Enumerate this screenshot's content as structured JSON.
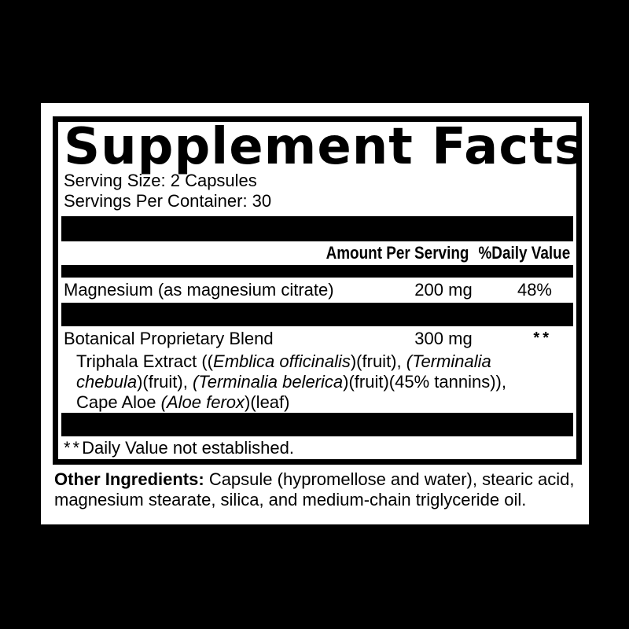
{
  "panel": {
    "title": "Supplement Facts",
    "serving_size": "Serving Size: 2 Capsules",
    "servings_per_container": "Servings Per Container: 30",
    "columns": {
      "amount": "Amount Per Serving",
      "daily_value": "%Daily Value"
    },
    "rows": [
      {
        "name": "Magnesium (as magnesium citrate)",
        "amount": "200 mg",
        "daily_value": "48%"
      },
      {
        "name": "Botanical Proprietary Blend",
        "amount": "300 mg",
        "daily_value": "**"
      }
    ],
    "blend_lines": [
      [
        {
          "t": "Triphala Extract ((",
          "i": false
        },
        {
          "t": "Emblica officinalis",
          "i": true
        },
        {
          "t": ")(fruit), ",
          "i": false
        },
        {
          "t": "(Terminalia",
          "i": true
        }
      ],
      [
        {
          "t": "chebula",
          "i": true
        },
        {
          "t": ")(fruit), ",
          "i": false
        },
        {
          "t": "(Terminalia belerica",
          "i": true
        },
        {
          "t": ")(fruit)(45% tannins)),",
          "i": false
        }
      ],
      [
        {
          "t": "Cape Aloe ",
          "i": false
        },
        {
          "t": "(Aloe ferox",
          "i": true
        },
        {
          "t": ")(leaf)",
          "i": false
        }
      ]
    ],
    "footnote_marker": "**",
    "footnote_text": "Daily Value not established.",
    "other_ingredients": {
      "label": "Other Ingredients:",
      "text": "Capsule (hypromellose and water), stearic acid, magnesium stearate, silica, and medium-chain triglyceride oil."
    },
    "colors": {
      "ink": "#000000",
      "paper": "#ffffff"
    }
  }
}
